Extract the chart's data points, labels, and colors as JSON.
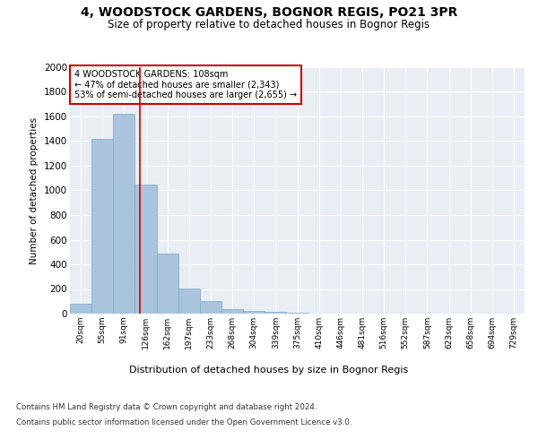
{
  "title": "4, WOODSTOCK GARDENS, BOGNOR REGIS, PO21 3PR",
  "subtitle": "Size of property relative to detached houses in Bognor Regis",
  "xlabel": "Distribution of detached houses by size in Bognor Regis",
  "ylabel": "Number of detached properties",
  "bin_labels": [
    "20sqm",
    "55sqm",
    "91sqm",
    "126sqm",
    "162sqm",
    "197sqm",
    "233sqm",
    "268sqm",
    "304sqm",
    "339sqm",
    "375sqm",
    "410sqm",
    "446sqm",
    "481sqm",
    "516sqm",
    "552sqm",
    "587sqm",
    "623sqm",
    "658sqm",
    "694sqm",
    "729sqm"
  ],
  "bar_values": [
    80,
    1420,
    1620,
    1050,
    490,
    205,
    105,
    40,
    25,
    15,
    10,
    0,
    0,
    0,
    0,
    0,
    0,
    0,
    0,
    0,
    0
  ],
  "bar_color": "#aac4de",
  "bar_edge_color": "#7aaac8",
  "property_line_x": 2.73,
  "property_sqm": 108,
  "annotation_text": "4 WOODSTOCK GARDENS: 108sqm\n← 47% of detached houses are smaller (2,343)\n53% of semi-detached houses are larger (2,655) →",
  "annotation_box_color": "#ffffff",
  "annotation_box_edge": "#cc0000",
  "property_line_color": "#cc0000",
  "ylim": [
    0,
    2000
  ],
  "yticks": [
    0,
    200,
    400,
    600,
    800,
    1000,
    1200,
    1400,
    1600,
    1800,
    2000
  ],
  "background_color": "#e8eef4",
  "footer_line1": "Contains HM Land Registry data © Crown copyright and database right 2024.",
  "footer_line2": "Contains public sector information licensed under the Open Government Licence v3.0."
}
